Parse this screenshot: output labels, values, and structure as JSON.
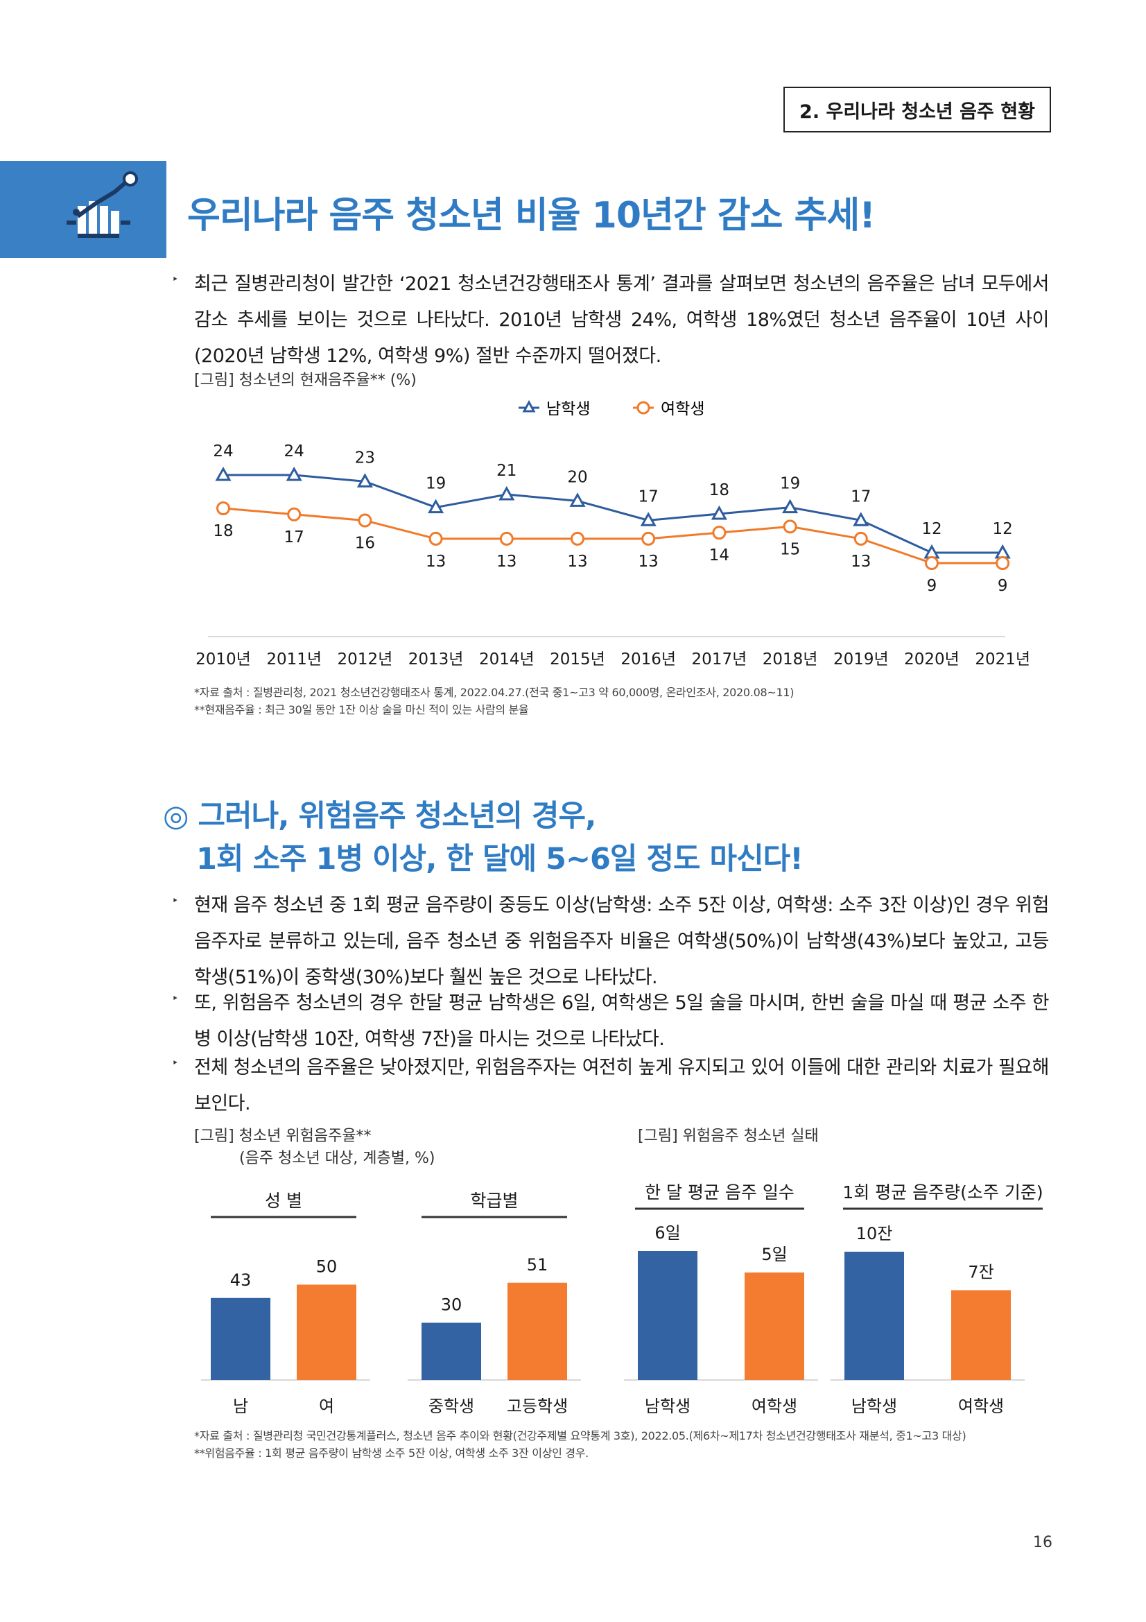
{
  "header": {
    "section_tag": "2. 우리나라 청소년 음주 현황"
  },
  "title_icon": "bar-chart-trend-icon",
  "main_title": "우리나라 음주 청소년 비율 10년간 감소 추세!",
  "intro": {
    "text": "최근 질병관리청이 발간한 ‘2021 청소년건강행태조사 통계’ 결과를 살펴보면 청소년의 음주율은 남녀 모두에서 감소 추세를 보이는 것으로 나타났다. 2010년 남학생 24%, 여학생 18%였던 청소년 음주율이 10년 사이(2020년 남학생 12%, 여학생 9%) 절반 수준까지 떨어졌다."
  },
  "figure1": {
    "caption": "[그림] 청소년의 현재음주율** (%)",
    "source_lines": [
      "*자료 출처 : 질병관리청, 2021 청소년건강행태조사 통계, 2022.04.27.(전국 중1~고3 약 60,000명, 온라인조사, 2020.08~11)",
      "**현재음주율 : 최근 30일 동안 1잔 이상 술을 마신 적이 있는 사람의 분율"
    ]
  },
  "section2": {
    "title_line1": "◎ 그러나, 위험음주 청소년의 경우,",
    "title_line2": "1회 소주 1병 이상, 한 달에 5~6일 정도 마신다!",
    "bullets": [
      "현재 음주 청소년 중 1회 평균 음주량이 중등도 이상(남학생: 소주 5잔 이상, 여학생: 소주 3잔 이상)인 경우 위험음주자로 분류하고 있는데, 음주 청소년 중 위험음주자 비율은 여학생(50%)이 남학생(43%)보다 높았고, 고등학생(51%)이 중학생(30%)보다 훨씬 높은 것으로 나타났다.",
      "또, 위험음주 청소년의 경우 한달 평균 남학생은 6일, 여학생은 5일 술을 마시며, 한번 술을 마실 때 평균 소주 한 병 이상(남학생 10잔, 여학생 7잔)을 마시는 것으로 나타났다.",
      "전체 청소년의 음주율은 낮아졌지만, 위험음주자는 여전히 높게 유지되고 있어 이들에 대한 관리와 치료가 필요해 보인다."
    ]
  },
  "figure2": {
    "caption_line1": "[그림] 청소년 위험음주율**",
    "caption_line2": "(음주 청소년 대상, 계층별, %)"
  },
  "figure3": {
    "caption": "[그림] 위험음주 청소년 실태"
  },
  "bottom_source_lines": [
    "*자료 출처 : 질병관리청 국민건강통계플러스, 청소년 음주 추이와 현황(건강주제별 요약통계 3호), 2022.05.(제6차~제17차 청소년건강행태조사 재분석, 중1~고3 대상)",
    "**위험음주율 : 1회 평균 음주량이 남학생 소주 5잔 이상, 여학생 소주 3잔 이상인 경우."
  ],
  "page_number": "16",
  "colors": {
    "male": "#2e5c9e",
    "female": "#f07a2a",
    "accent": "#2f7cc4",
    "bar_blue": "#3363a3",
    "bar_orange": "#f47c30"
  },
  "chart_data": [
    {
      "type": "line",
      "categories": [
        "2010년",
        "2011년",
        "2012년",
        "2013년",
        "2014년",
        "2015년",
        "2016년",
        "2017년",
        "2018년",
        "2019년",
        "2020년",
        "2021년"
      ],
      "series": [
        {
          "name": "남학생",
          "values": [
            24,
            24,
            23,
            19,
            21,
            20,
            17,
            18,
            19,
            17,
            12,
            12
          ],
          "marker": "triangle"
        },
        {
          "name": "여학생",
          "values": [
            18,
            17,
            16,
            13,
            13,
            13,
            13,
            14,
            15,
            13,
            9,
            9
          ],
          "marker": "circle"
        }
      ],
      "legend": "top-center",
      "grid": false
    },
    {
      "type": "bar",
      "title": "성 별",
      "categories": [
        "남",
        "여"
      ],
      "values": [
        43,
        50
      ],
      "labels": [
        "43",
        "50"
      ]
    },
    {
      "type": "bar",
      "title": "학급별",
      "categories": [
        "중학생",
        "고등학생"
      ],
      "values": [
        30,
        51
      ],
      "labels": [
        "30",
        "51"
      ]
    },
    {
      "type": "bar",
      "title": "한 달 평균 음주 일수",
      "categories": [
        "남학생",
        "여학생"
      ],
      "values": [
        6,
        5
      ],
      "labels": [
        "6일",
        "5일"
      ]
    },
    {
      "type": "bar",
      "title": "1회 평균 음주량(소주 기준)",
      "categories": [
        "남학생",
        "여학생"
      ],
      "values": [
        10,
        7
      ],
      "labels": [
        "10잔",
        "7잔"
      ]
    }
  ]
}
